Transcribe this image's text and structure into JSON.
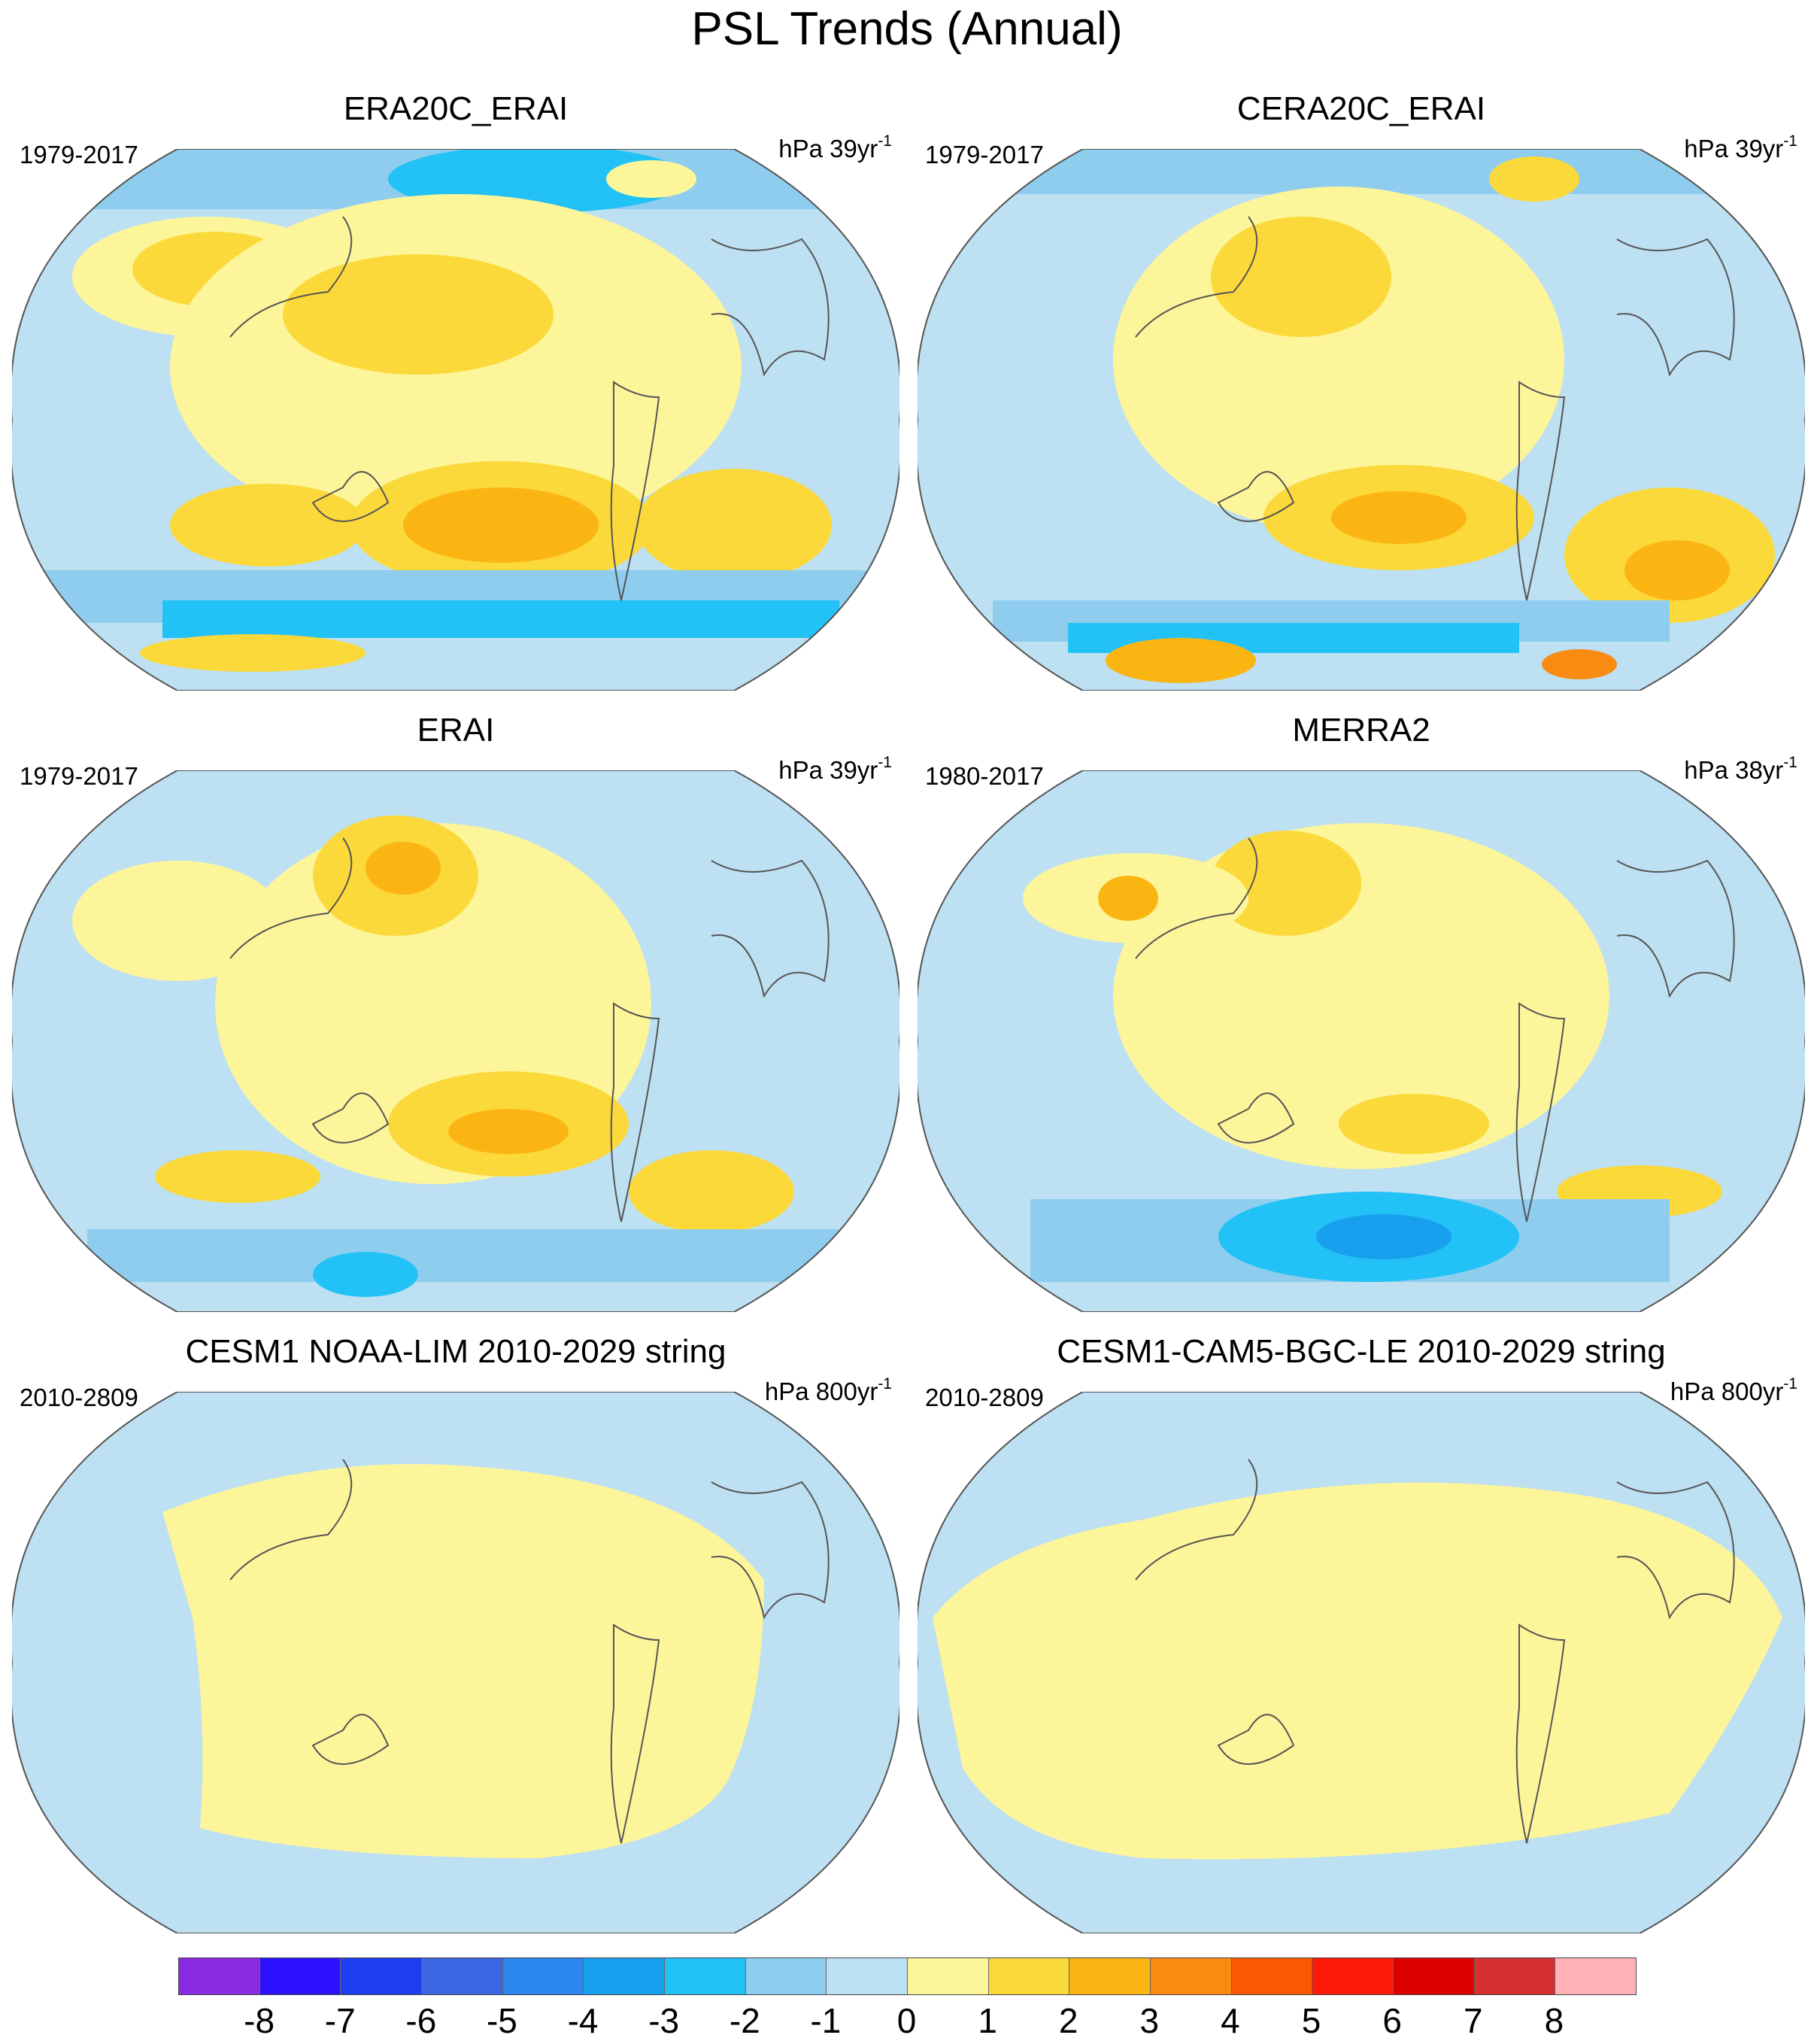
{
  "title": "PSL Trends (Annual)",
  "colors": {
    "land_outline": "#555555",
    "frame": "#555555",
    "levels": [
      "#8a2be2",
      "#2d12ff",
      "#1e3ef0",
      "#3c67e3",
      "#2b86f0",
      "#189fee",
      "#23c2f6",
      "#8fcdef",
      "#bde0f2",
      "#fdf59a",
      "#fbd93a",
      "#fbb513",
      "#f98a12",
      "#fb5a04",
      "#ff1a0a",
      "#dd0000",
      "#d62f2f",
      "#ffb3b8"
    ]
  },
  "colorbar": {
    "labels": [
      "-8",
      "-7",
      "-6",
      "-5",
      "-4",
      "-3",
      "-2",
      "-1",
      "0",
      "1",
      "2",
      "3",
      "4",
      "5",
      "6",
      "7",
      "8"
    ]
  },
  "panels": [
    {
      "title": "ERA20C_ERAI",
      "period": "1979-2017",
      "units_base": "hPa 39yr",
      "units_exp": "-1"
    },
    {
      "title": "CERA20C_ERAI",
      "period": "1979-2017",
      "units_base": "hPa 39yr",
      "units_exp": "-1"
    },
    {
      "title": "ERAI",
      "period": "1979-2017",
      "units_base": "hPa 39yr",
      "units_exp": "-1"
    },
    {
      "title": "MERRA2",
      "period": "1980-2017",
      "units_base": "hPa 38yr",
      "units_exp": "-1"
    },
    {
      "title": "CESM1 NOAA-LIM 2010-2029 string",
      "period": "2010-2809",
      "units_base": "hPa 800yr",
      "units_exp": "-1"
    },
    {
      "title": "CESM1-CAM5-BGC-LE 2010-2029 string",
      "period": "2010-2809",
      "units_base": "hPa 800yr",
      "units_exp": "-1"
    }
  ]
}
